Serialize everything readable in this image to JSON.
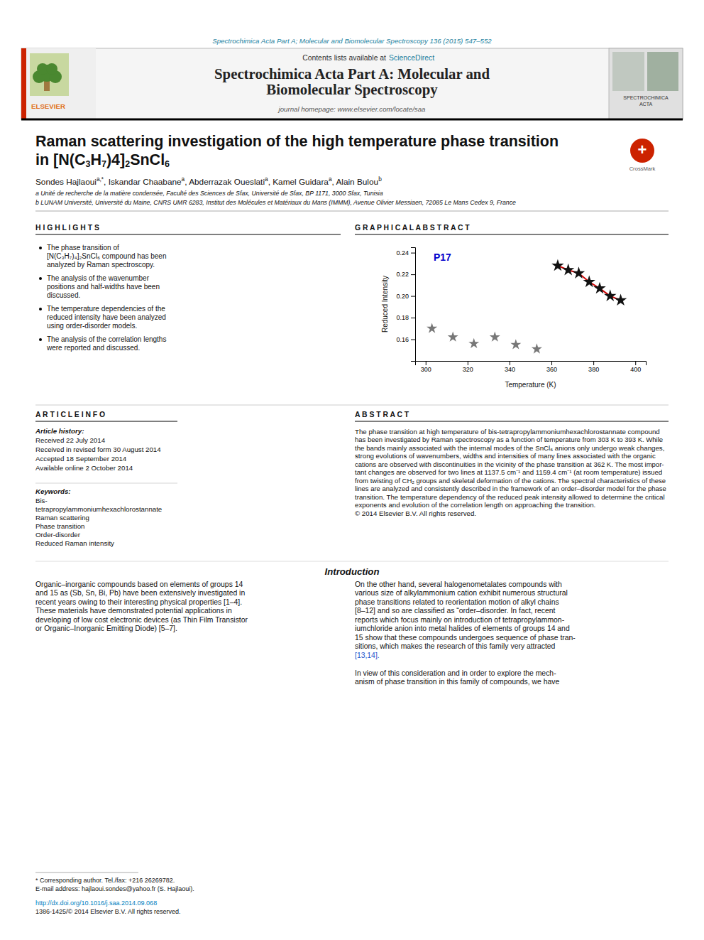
{
  "page": {
    "citation": "Spectrochimica Acta Part A; Molecular and Biomolecular Spectroscopy 136 (2015) 547–552",
    "citation_color": "#1a7fa0",
    "publisher": "ELSEVIER",
    "publisher_color": "#e07020",
    "journal_logo": [
      "SPECTROCHIMICA",
      "ACTA"
    ],
    "contents_line": "Contents lists available at",
    "sciencedirect": "ScienceDirect",
    "journal_title": [
      "Spectrochimica Acta Part A: Molecular and",
      "Biomolecular Spectroscopy"
    ],
    "journal_homepage": "journal homepage: www.elsevier.com/locate/saa",
    "paper_title_line1": "Raman scattering investigation of the high temperature phase transition",
    "paper_title_line2": [
      {
        "text": "in [N(C"
      },
      {
        "text": "3",
        "sub": true
      },
      {
        "text": "H"
      },
      {
        "text": "7",
        "sub": true
      },
      {
        "text": ")4]"
      },
      {
        "text": "2",
        "sub": true
      },
      {
        "text": "SnCl"
      },
      {
        "text": "6",
        "sub": true
      }
    ],
    "crossmark": [
      "+",
      "CrossMark"
    ],
    "authors": [
      {
        "text": "Sondes Hajlaoui"
      },
      {
        "text": "a,*",
        "sup": true
      },
      {
        "text": ", Iskandar Chaabane"
      },
      {
        "text": "a",
        "sup": true
      },
      {
        "text": ", Abderrazak Oueslati"
      },
      {
        "text": "a",
        "sup": true
      },
      {
        "text": ", Kamel Guidara"
      },
      {
        "text": "a",
        "sup": true
      },
      {
        "text": ", Alain Bulou"
      },
      {
        "text": "b",
        "sup": true
      }
    ],
    "affiliations": [
      "a Unité de recherche de la matière condensée, Faculté des Sciences de Sfax, Université de Sfax, BP 1171, 3000 Sfax, Tunisia",
      "b LUNAM Université, Université du Maine, CNRS UMR 6283, Institut des Molécules et Matériaux du Mans (IMMM), Avenue Olivier Messiaen, 72085 Le Mans Cedex 9, France"
    ],
    "highlights_title": "H I G H L I G H T S",
    "highlights": [
      [
        "The phase transition of",
        "[N(C₃H₇)₄]₂SnCl₆ compound has been",
        "analyzed by Raman spectroscopy."
      ],
      [
        "The analysis of the wavenumber",
        "positions and half-widths have been",
        "discussed."
      ],
      [
        "The temperature dependencies of the",
        "reduced intensity have been analyzed",
        "using order-disorder models."
      ],
      [
        "The analysis of the correlation lengths",
        "were reported and discussed."
      ]
    ],
    "graphical_abstract_title": "G R A P H I C A L   A B S T R A C T",
    "article_info_title": "A R T I C L E   I N F O",
    "article_history_title": "Article history:",
    "article_history": [
      "Received 22 July 2014",
      "Received in revised form 30 August 2014",
      "Accepted 18 September 2014",
      "Available online 2 October 2014"
    ],
    "keywords_title": "Keywords:",
    "keywords": [
      "Bis-",
      "tetrapropylammoniumhexachlorostannate",
      "Raman scattering",
      "Phase transition",
      "Order-disorder",
      "Reduced Raman intensity"
    ],
    "abstract_title": "A B S T R A C T",
    "abstract": [
      "The phase transition at high temperature of bis-tetrapropylammoniumhexachlorostannate compound",
      "has been investigated by Raman spectroscopy as a function of temperature from 303 K to 393 K. While",
      "the bands mainly associated with the internal modes of the SnCl₆ anions only undergo weak changes,",
      "strong evolutions of wavenumbers, widths and intensities of many lines associated with the organic",
      "cations are observed with discontinuities in the vicinity of the phase transition at 362 K. The most impor-",
      "tant changes are observed for two lines at 1137.5 cm⁻¹ and 1159.4 cm⁻¹ (at room temperature) issued",
      "from twisting of CH₂ groups and skeletal deformation of the cations. The spectral characteristics of these",
      "lines are analyzed and consistently described in the framework of an order–disorder model for the phase",
      "transition. The temperature dependency of the reduced peak intensity allowed to determine the critical",
      "exponents and evolution of the correlation length on approaching the transition.",
      "© 2014 Elsevier B.V. All rights reserved."
    ],
    "intro_title": "Introduction",
    "intro_col1": [
      "Organic–inorganic compounds based on elements of groups 14",
      "and 15 as (Sb, Sn, Bi, Pb) have been extensively investigated in",
      "recent years owing to their interesting physical properties [1–4].",
      "These materials have demonstrated potential applications in",
      "developing of low cost electronic devices (as Thin Film Transistor",
      "or Organic–Inorganic Emitting Diode) [5–7]."
    ],
    "intro_col2": [
      [
        {
          "text": "On the other hand, several halogenometalates compounds with"
        },
        {
          "text": "various size of alkylammonium cation exhibit numerous structural"
        },
        {
          "text": "phase transitions related to reorientation motion of alkyl chains"
        },
        {
          "text": "[8–12] and so are classified as “order–disorder. In fact, recent"
        },
        {
          "text": "reports which focus mainly on introduction of tetrapropylammon-"
        },
        {
          "text": "iumchloride anion into metal halides of elements of groups 14 and"
        },
        {
          "text": "15 show that these compounds undergoes sequence of phase tran-"
        },
        {
          "text": "sitions, which makes the research of this family very attracted"
        },
        {
          "text": "[13,14].",
          "color": "#2255cc"
        }
      ],
      [
        {
          "text": "In view of this consideration and in order to explore the mech-"
        },
        {
          "text": "anism of phase transition in this family of compounds, we have"
        }
      ]
    ],
    "footnotes": [
      "* Corresponding author. Tel./fax: +216 26269782.",
      "E-mail address: hajlaoui.sondes@yahoo.fr (S. Hajlaoui)."
    ],
    "doi": "http://dx.doi.org/10.1016/j.saa.2014.09.068",
    "doi_color": "#0080c0",
    "issn": "1386-1425/© 2014 Elsevier B.V. All rights reserved."
  },
  "chart_data": {
    "type": "scatter",
    "xlabel": "Temperature (K)",
    "ylabel": "Reduced Intensity",
    "xlim": [
      295,
      405
    ],
    "ylim": [
      0.14,
      0.245
    ],
    "xticks": [
      300,
      320,
      340,
      360,
      380,
      400
    ],
    "yticks": [
      0.16,
      0.18,
      {
        "value": 0.2,
        "label": "0.20"
      },
      0.22,
      0.24
    ],
    "grid": false,
    "annotations": [
      {
        "text": "P17",
        "color": "#0000cc"
      }
    ],
    "series": [
      {
        "color": "#777777",
        "marker": "star",
        "x": [
          303,
          313,
          323,
          333,
          343,
          353
        ],
        "values": [
          0.17,
          0.162,
          0.156,
          0.162,
          0.155,
          0.151
        ]
      },
      {
        "color": "#111111",
        "marker": "star",
        "x": [
          363,
          368,
          373,
          378,
          383,
          388,
          393
        ],
        "values": [
          0.228,
          0.224,
          0.221,
          0.213,
          0.207,
          0.2,
          0.196
        ]
      },
      {
        "type": "line",
        "color": "#cc0000",
        "x": [
          363,
          368,
          373,
          378,
          383,
          388,
          393
        ],
        "values": [
          0.228,
          0.224,
          0.221,
          0.213,
          0.207,
          0.2,
          0.196
        ]
      }
    ]
  }
}
